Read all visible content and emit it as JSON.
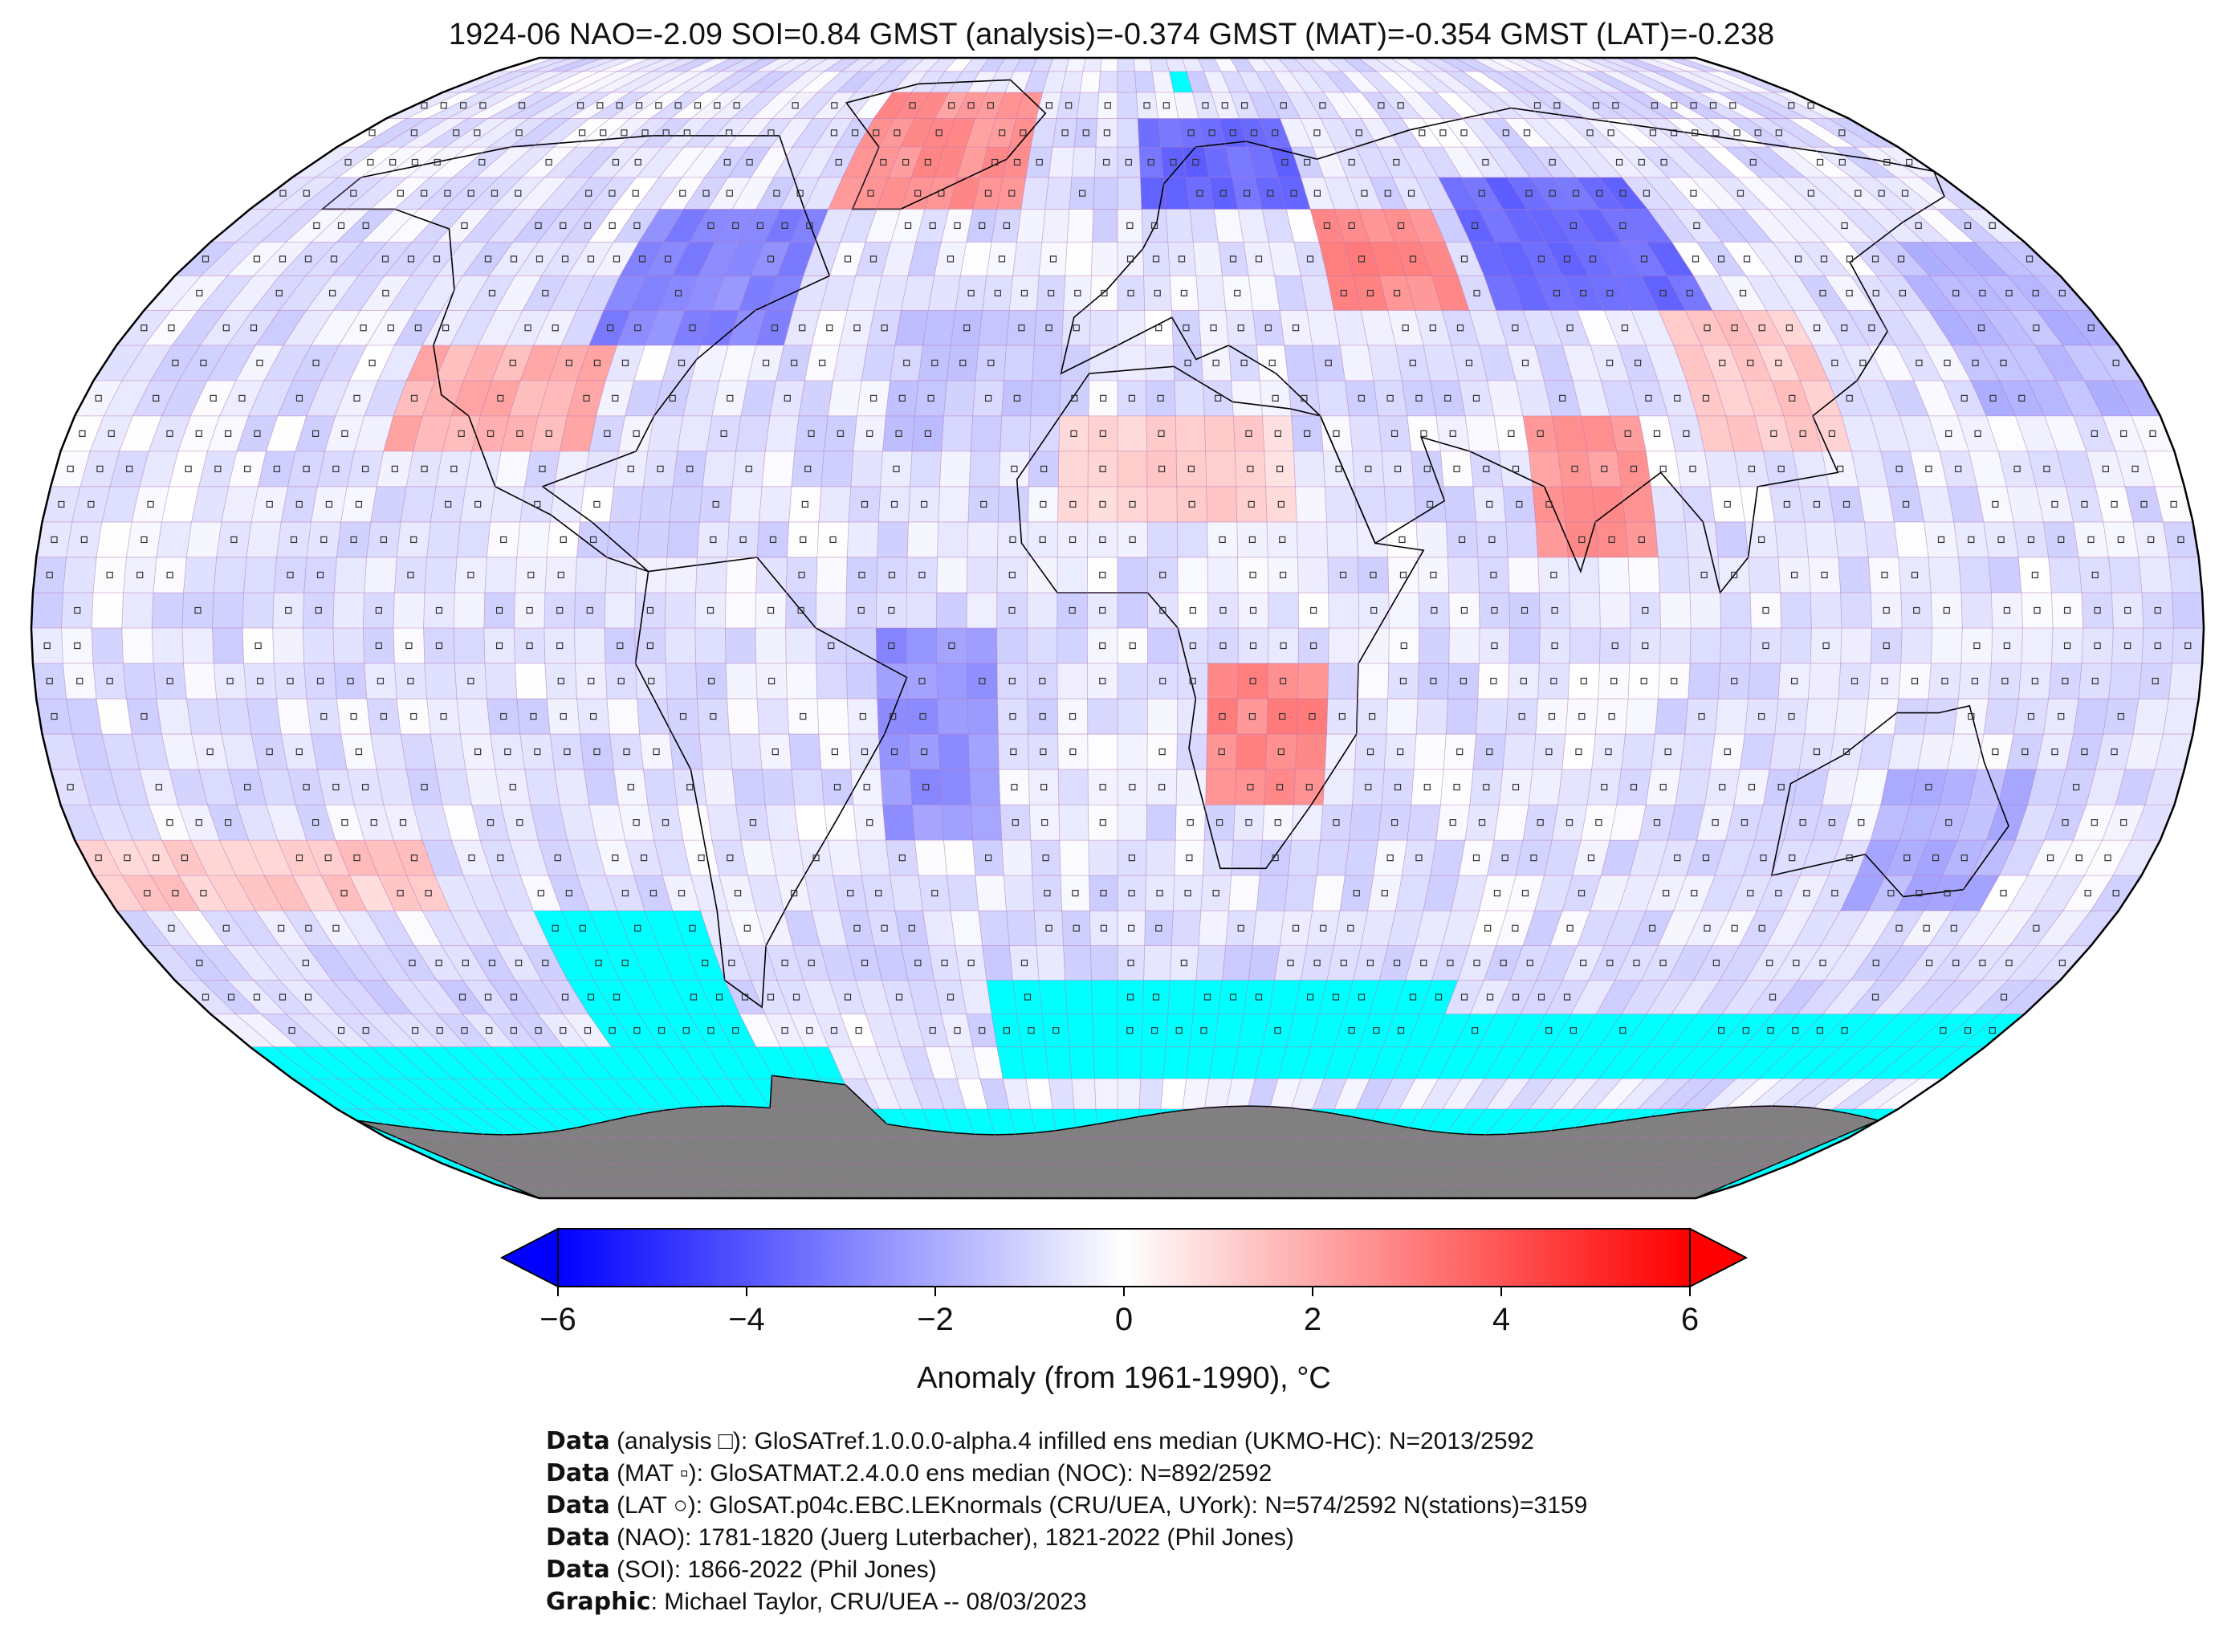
{
  "title": "1924-06 NAO=-2.09 SOI=0.84 GMST (analysis)=-0.374 GMST (MAT)=-0.354 GMST (LAT)=-0.238",
  "colors": {
    "ocean_missing": "#00ffff",
    "antarctica_land": "#808080",
    "cold_end": "#0000ff",
    "neutral": "#ffffff",
    "warm_end": "#ff0000",
    "gridline": "#b070b0"
  },
  "colorbar": {
    "label": "Anomaly (from 1961-1990), °C",
    "min": -6,
    "max": 6,
    "ticks": [
      "−6",
      "−4",
      "−2",
      "0",
      "2",
      "4",
      "6"
    ],
    "tick_values": [
      -6,
      -4,
      -2,
      0,
      2,
      4,
      6
    ],
    "extend": "both"
  },
  "map": {
    "projection": "robinson",
    "grid_resolution_deg": 5,
    "anomaly_regions": [
      {
        "region": "Greenland",
        "lon": [
          -60,
          -20
        ],
        "lat": [
          60,
          80
        ],
        "value": 2.5
      },
      {
        "region": "Eastern North America",
        "lon": [
          -95,
          -60
        ],
        "lat": [
          40,
          60
        ],
        "value": -2.8
      },
      {
        "region": "Western United States",
        "lon": [
          -125,
          -90
        ],
        "lat": [
          25,
          40
        ],
        "value": 1.8
      },
      {
        "region": "Scandinavia",
        "lon": [
          5,
          40
        ],
        "lat": [
          60,
          75
        ],
        "value": -3.5
      },
      {
        "region": "Western Russia",
        "lon": [
          40,
          65
        ],
        "lat": [
          45,
          60
        ],
        "value": 2.8
      },
      {
        "region": "Siberia",
        "lon": [
          70,
          110
        ],
        "lat": [
          45,
          65
        ],
        "value": -3.5
      },
      {
        "region": "India",
        "lon": [
          70,
          90
        ],
        "lat": [
          10,
          30
        ],
        "value": 2.5
      },
      {
        "region": "Southern Africa",
        "lon": [
          15,
          35
        ],
        "lat": [
          -25,
          -5
        ],
        "value": 2.8
      },
      {
        "region": "South Atlantic",
        "lon": [
          -40,
          -20
        ],
        "lat": [
          -30,
          0
        ],
        "value": -2.5
      },
      {
        "region": "Australia",
        "lon": [
          130,
          155
        ],
        "lat": [
          -40,
          -20
        ],
        "value": -1.8
      },
      {
        "region": "East Pacific",
        "lon": [
          -180,
          -120
        ],
        "lat": [
          -40,
          -30
        ],
        "value": 1.2
      },
      {
        "region": "North Pacific",
        "lon": [
          150,
          180
        ],
        "lat": [
          30,
          55
        ],
        "value": -1.6
      },
      {
        "region": "Equatorial Pacific",
        "lon": [
          160,
          180
        ],
        "lat": [
          -10,
          10
        ],
        "value": -0.8
      },
      {
        "region": "North Atlantic",
        "lon": [
          -40,
          -10
        ],
        "lat": [
          25,
          45
        ],
        "value": -1.2
      },
      {
        "region": "Sahara",
        "lon": [
          -10,
          30
        ],
        "lat": [
          15,
          30
        ],
        "value": 1.0
      },
      {
        "region": "China",
        "lon": [
          100,
          125
        ],
        "lat": [
          25,
          45
        ],
        "value": 1.2
      },
      {
        "region": "Southern Ocean",
        "lon": [
          -180,
          180
        ],
        "lat": [
          -55,
          -45
        ],
        "value": -0.9
      }
    ],
    "missing_regions": [
      {
        "lon": [
          -180,
          -60
        ],
        "lat": [
          -70,
          -60
        ]
      },
      {
        "lon": [
          -105,
          -75
        ],
        "lat": [
          -65,
          -40
        ]
      },
      {
        "lon": [
          -25,
          65
        ],
        "lat": [
          -65,
          -50
        ]
      },
      {
        "lon": [
          65,
          180
        ],
        "lat": [
          -65,
          -55
        ]
      },
      {
        "lon": [
          -180,
          180
        ],
        "lat": [
          -90,
          -70
        ]
      },
      {
        "lon": [
          15,
          20
        ],
        "lat": [
          80,
          85
        ]
      }
    ]
  },
  "credits": [
    {
      "label": "Data",
      "text": " (analysis □): GloSATref.1.0.0.0-alpha.4 infilled ens median (UKMO-HC): N=2013/2592"
    },
    {
      "label": "Data",
      "text": " (MAT ▫): GloSATMAT.2.4.0.0 ens median (NOC): N=892/2592"
    },
    {
      "label": "Data",
      "text": " (LAT ○): GloSAT.p04c.EBC.LEKnormals (CRU/UEA, UYork): N=574/2592 N(stations)=3159"
    },
    {
      "label": "Data",
      "text": " (NAO): 1781-1820 (Juerg Luterbacher), 1821-2022 (Phil Jones)"
    },
    {
      "label": "Data",
      "text": " (SOI): 1866-2022 (Phil Jones)"
    },
    {
      "label": "Graphic",
      "text": ": Michael Taylor, CRU/UEA -- 08/03/2023"
    }
  ]
}
